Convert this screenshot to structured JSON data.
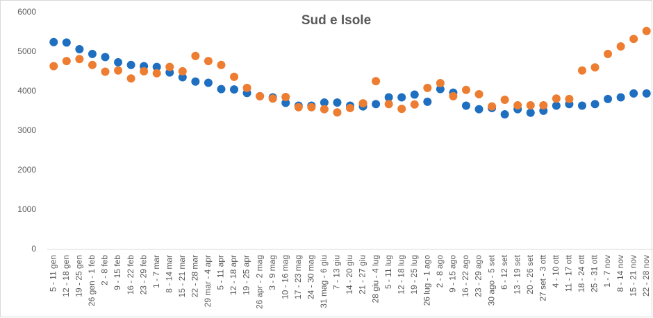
{
  "chart_data": {
    "type": "scatter",
    "title": "Sud e Isole",
    "categories": [
      "5 - 11 gen",
      "12 - 18 gen",
      "19 - 25 gen",
      "26 gen - 1 feb",
      "2 - 8 feb",
      "9 - 15 feb",
      "16 - 22 feb",
      "23 - 29 feb",
      "1 - 7 mar",
      "8 - 14 mar",
      "15 - 21 mar",
      "22 - 28 mar",
      "29 mar - 4 apr",
      "5 - 11 apr",
      "12 - 18 apr",
      "19 - 25 apr",
      "26 apr - 2 mag",
      "3 - 9 mag",
      "10 - 16 mag",
      "17 - 23 mag",
      "24 - 30 mag",
      "31 mag - 6 giu",
      "7 - 13 giu",
      "14 - 20 giu",
      "21 - 27 giu",
      "28 giu - 4 lug",
      "5 - 11 lug",
      "12 - 18 lug",
      "19 - 25 lug",
      "26 lug - 1 ago",
      "2 - 8 ago",
      "9 - 15 ago",
      "16 - 22 ago",
      "23 - 29 ago",
      "30 ago - 5 set",
      "6 - 12 set",
      "13 - 19 set",
      "20 - 26 set",
      "27 set - 3 ott",
      "4 - 10 ott",
      "11 - 17 ott",
      "18 - 24 ott",
      "25 - 31 ott",
      "1 - 7 nov",
      "8 - 14 nov",
      "15 - 21 nov",
      "22 - 28 nov"
    ],
    "series": [
      {
        "color": "#1f6fc0",
        "values": [
          5250,
          5240,
          5070,
          4950,
          4870,
          4740,
          4670,
          4640,
          4620,
          4480,
          4360,
          4250,
          4220,
          4060,
          4050,
          3960,
          3880,
          3850,
          3710,
          3640,
          3640,
          3720,
          3720,
          3640,
          3620,
          3680,
          3850,
          3850,
          3920,
          3740,
          4060,
          3970,
          3640,
          3550,
          3580,
          3420,
          3550,
          3460,
          3510,
          3640,
          3680,
          3640,
          3680,
          3810,
          3850,
          3950,
          3950
        ]
      },
      {
        "color": "#ed7d31",
        "values": [
          4640,
          4770,
          4820,
          4670,
          4500,
          4530,
          4330,
          4510,
          4460,
          4620,
          4510,
          4900,
          4770,
          4670,
          4370,
          4090,
          3880,
          3820,
          3860,
          3600,
          3600,
          3550,
          3470,
          3580,
          3700,
          4260,
          3680,
          3560,
          3670,
          4090,
          4210,
          3880,
          4040,
          3930,
          3620,
          3790,
          3650,
          3650,
          3650,
          3820,
          3810,
          4530,
          4610,
          4950,
          5140,
          5330,
          5530
        ]
      }
    ],
    "ylim": [
      0,
      6000
    ],
    "yticks": [
      0,
      1000,
      2000,
      3000,
      4000,
      5000,
      6000
    ],
    "grid": false
  }
}
